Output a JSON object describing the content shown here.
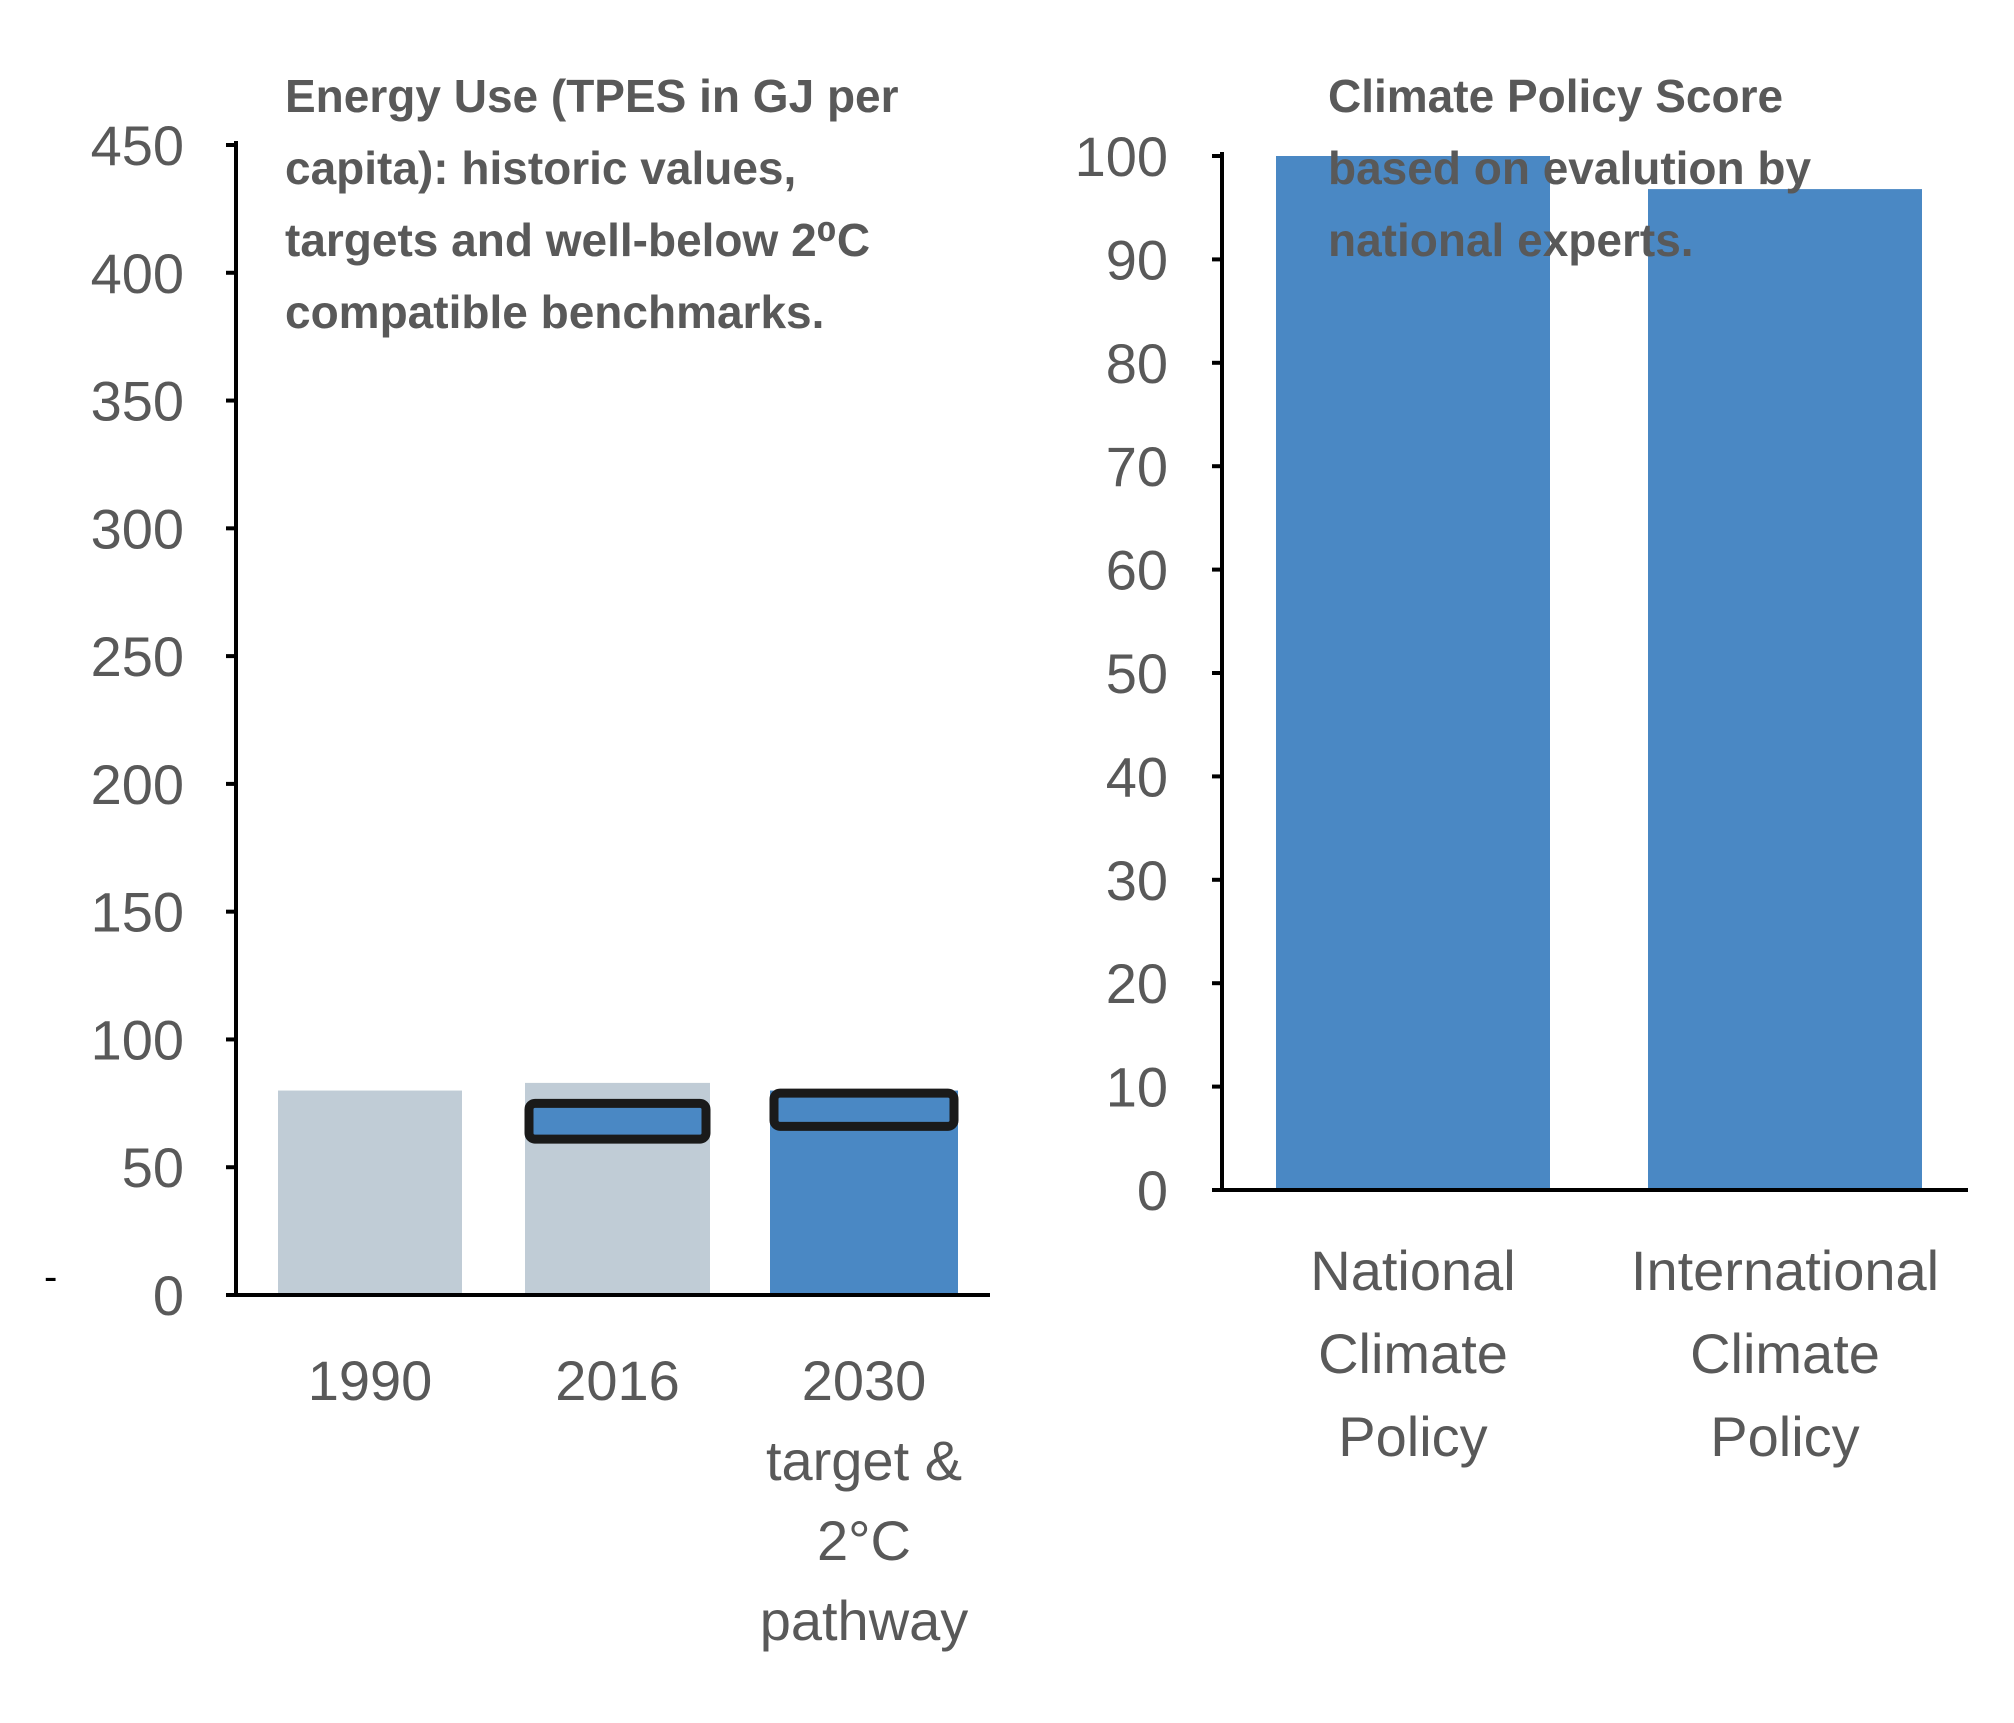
{
  "stray_mark": "-",
  "chart_data": [
    {
      "type": "bar",
      "title_lines": [
        "Energy Use (TPES in GJ per",
        "capita): historic values,",
        "targets and well-below 2⁰C",
        "compatible benchmarks."
      ],
      "categories": [
        {
          "lines": [
            "1990"
          ]
        },
        {
          "lines": [
            "2016"
          ]
        },
        {
          "lines": [
            "2030",
            "target &",
            "2°C",
            "pathway"
          ]
        }
      ],
      "values": [
        80,
        83,
        80
      ],
      "bar_colors": [
        "#c0ccd6",
        "#c0ccd6",
        "#4a88c4"
      ],
      "target_ranges": [
        null,
        [
          61,
          75
        ],
        [
          66,
          79
        ]
      ],
      "target_fill": "#4a88c4",
      "target_stroke": "#1a1a1a",
      "ylim": [
        0,
        450
      ],
      "yticks": [
        0,
        50,
        100,
        150,
        200,
        250,
        300,
        350,
        400,
        450
      ],
      "ytick_labels": [
        "0",
        "50",
        "100",
        "150",
        "200",
        "250",
        "300",
        "350",
        "400",
        "450"
      ],
      "grid": false,
      "xlabel": "",
      "ylabel": ""
    },
    {
      "type": "bar",
      "title_lines": [
        "Climate Policy Score",
        "based on evalution by",
        "national experts."
      ],
      "categories": [
        {
          "lines": [
            "National",
            "Climate",
            "Policy"
          ]
        },
        {
          "lines": [
            "International",
            "Climate",
            "Policy"
          ]
        }
      ],
      "values": [
        100,
        96.8
      ],
      "bar_colors": [
        "#4a88c4",
        "#4a88c4"
      ],
      "ylim": [
        0,
        100
      ],
      "yticks": [
        0,
        10,
        20,
        30,
        40,
        50,
        60,
        70,
        80,
        90,
        100
      ],
      "ytick_labels": [
        "0",
        "10",
        "20",
        "30",
        "40",
        "50",
        "60",
        "70",
        "80",
        "90",
        "100"
      ],
      "grid": false,
      "xlabel": "",
      "ylabel": ""
    }
  ]
}
